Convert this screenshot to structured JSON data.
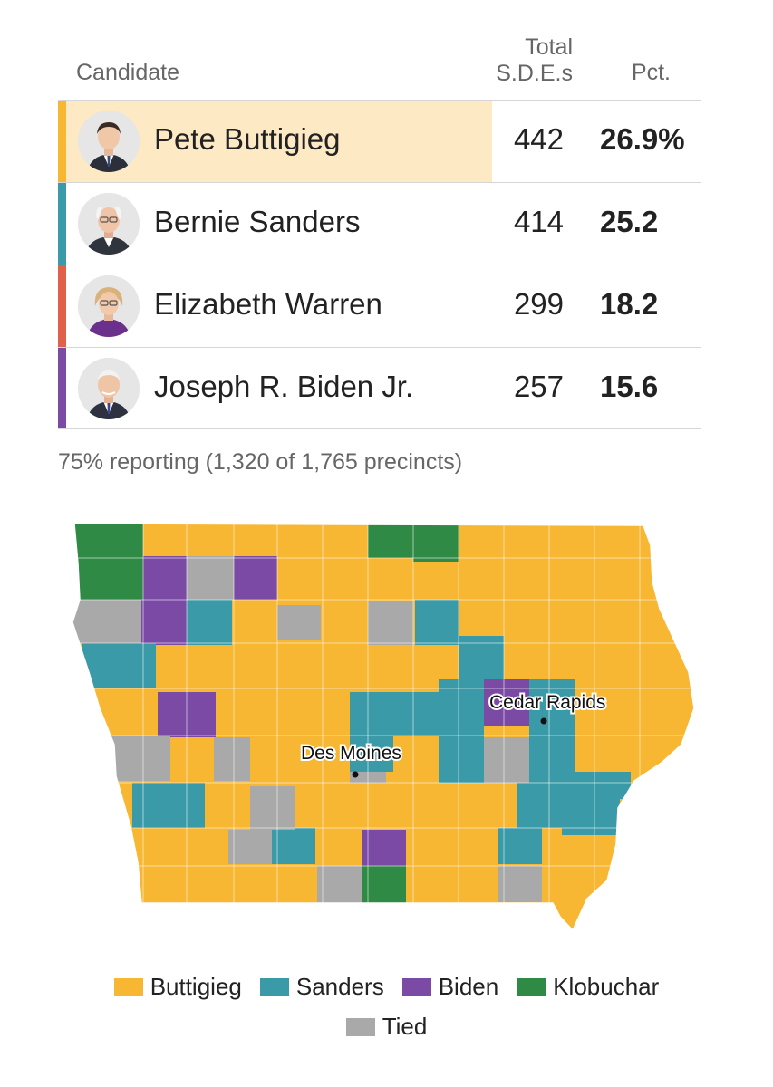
{
  "table": {
    "headers": {
      "candidate": "Candidate",
      "total_line1": "Total",
      "total_line2": "S.D.E.s",
      "pct": "Pct."
    },
    "rows": [
      {
        "name": "Pete Buttigieg",
        "sdes": "442",
        "pct": "26.9%",
        "color": "#f7b733",
        "leader": true
      },
      {
        "name": "Bernie Sanders",
        "sdes": "414",
        "pct": "25.2",
        "color": "#3b9aa8",
        "leader": false
      },
      {
        "name": "Elizabeth Warren",
        "sdes": "299",
        "pct": "18.2",
        "color": "#e0614a",
        "leader": false
      },
      {
        "name": "Joseph R. Biden Jr.",
        "sdes": "257",
        "pct": "15.6",
        "color": "#7b4aa5",
        "leader": false
      }
    ]
  },
  "reporting": "75% reporting (1,320 of 1,765 precincts)",
  "map": {
    "cities": [
      {
        "name": "Des Moines"
      },
      {
        "name": "Cedar Rapids"
      }
    ]
  },
  "legend": [
    {
      "label": "Buttigieg",
      "color": "#f7b733"
    },
    {
      "label": "Sanders",
      "color": "#3b9aa8"
    },
    {
      "label": "Biden",
      "color": "#7b4aa5"
    },
    {
      "label": "Klobuchar",
      "color": "#2f8a45"
    },
    {
      "label": "Tied",
      "color": "#a9a9a9"
    }
  ]
}
